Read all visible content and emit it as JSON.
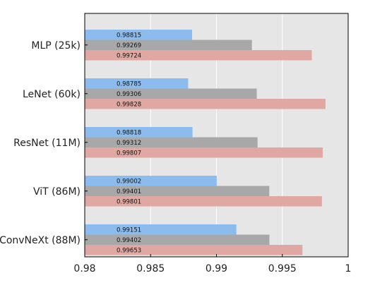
{
  "chart_data": {
    "type": "bar",
    "orientation": "horizontal",
    "categories": [
      "MLP (25k)",
      "LeNet (60k)",
      "ResNet (11M)",
      "ViT (86M)",
      "ConvNeXt (88M)"
    ],
    "series": [
      {
        "color": "#8cbbed",
        "values": [
          0.98815,
          0.98785,
          0.98818,
          0.99002,
          0.99151
        ]
      },
      {
        "color": "#a8a8a8",
        "values": [
          0.99269,
          0.99306,
          0.99312,
          0.99401,
          0.99402
        ]
      },
      {
        "color": "#e0a8a2",
        "values": [
          0.99724,
          0.99828,
          0.99807,
          0.99801,
          0.99653
        ]
      }
    ],
    "xlim": [
      0.98,
      1
    ],
    "xticks": [
      "0.98",
      "0.985",
      "0.99",
      "0.995",
      "1"
    ],
    "grid": true,
    "background": "#e6e6e6",
    "title": "",
    "xlabel": "",
    "ylabel": ""
  }
}
